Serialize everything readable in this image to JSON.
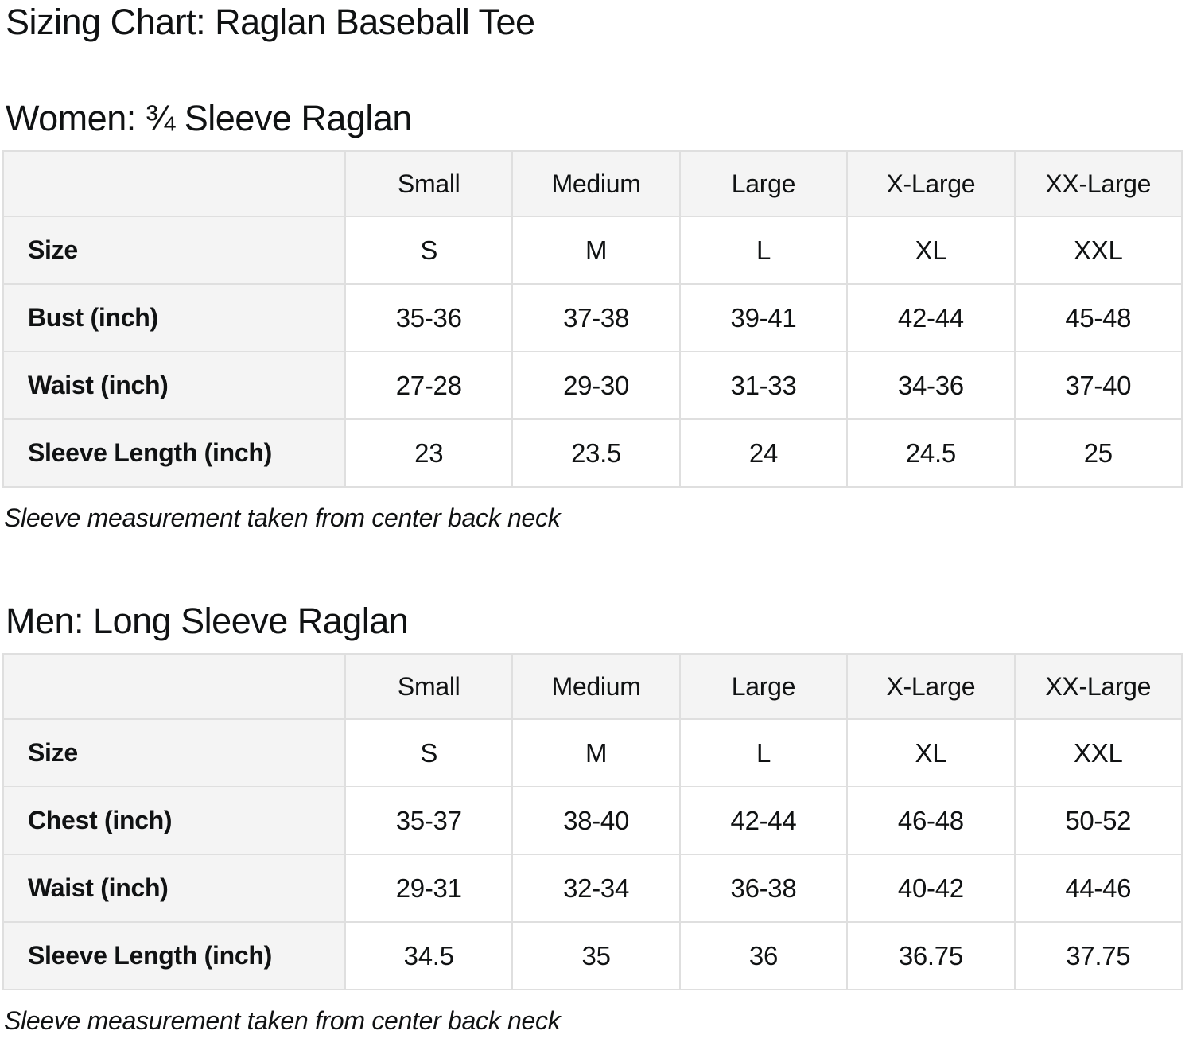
{
  "page": {
    "title": "Sizing Chart: Raglan Baseball Tee"
  },
  "colors": {
    "header_bg": "#f4f4f4",
    "border": "#dfdfdf",
    "text": "#101213"
  },
  "women": {
    "heading": "Women: ¾ Sleeve Raglan",
    "note": "Sleeve measurement taken from center back neck",
    "table": {
      "columns": [
        "",
        "Small",
        "Medium",
        "Large",
        "X-Large",
        "XX-Large"
      ],
      "rows": [
        {
          "label": "Size",
          "values": [
            "S",
            "M",
            "L",
            "XL",
            "XXL"
          ]
        },
        {
          "label": "Bust (inch)",
          "values": [
            "35-36",
            "37-38",
            "39-41",
            "42-44",
            "45-48"
          ]
        },
        {
          "label": "Waist (inch)",
          "values": [
            "27-28",
            "29-30",
            "31-33",
            "34-36",
            "37-40"
          ]
        },
        {
          "label": "Sleeve Length (inch)",
          "values": [
            "23",
            "23.5",
            "24",
            "24.5",
            "25"
          ]
        }
      ]
    }
  },
  "men": {
    "heading": "Men: Long Sleeve Raglan",
    "note": "Sleeve measurement taken from center back neck",
    "table": {
      "columns": [
        "",
        "Small",
        "Medium",
        "Large",
        "X-Large",
        "XX-Large"
      ],
      "rows": [
        {
          "label": "Size",
          "values": [
            "S",
            "M",
            "L",
            "XL",
            "XXL"
          ]
        },
        {
          "label": "Chest (inch)",
          "values": [
            "35-37",
            "38-40",
            "42-44",
            "46-48",
            "50-52"
          ]
        },
        {
          "label": "Waist (inch)",
          "values": [
            "29-31",
            "32-34",
            "36-38",
            "40-42",
            "44-46"
          ]
        },
        {
          "label": "Sleeve Length (inch)",
          "values": [
            "34.5",
            "35",
            "36",
            "36.75",
            "37.75"
          ]
        }
      ]
    }
  }
}
